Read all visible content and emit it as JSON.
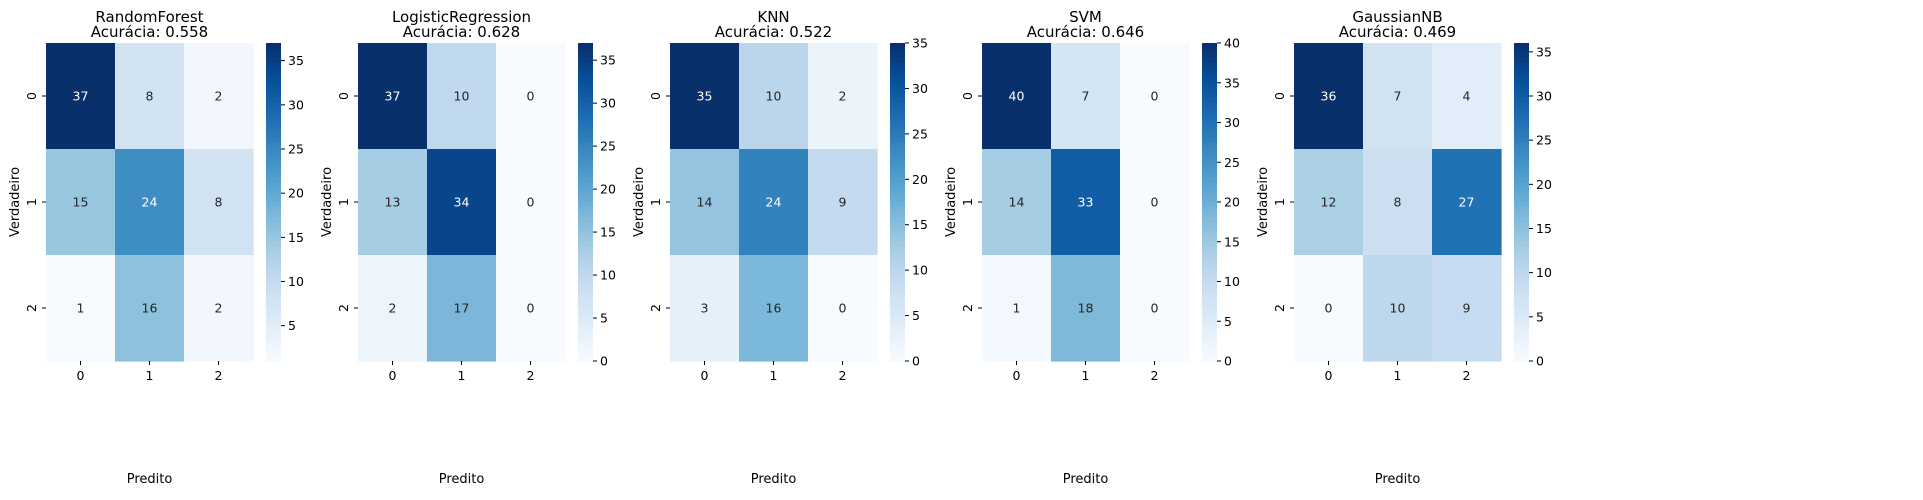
{
  "chart_data": [
    {
      "type": "heatmap",
      "title": "RandomForest",
      "subtitle": "Acurácia: 0.558",
      "xlabel": "Predito",
      "ylabel": "Verdadeiro",
      "x_categories": [
        "0",
        "1",
        "2"
      ],
      "y_categories": [
        "0",
        "1",
        "2"
      ],
      "values": [
        [
          37,
          8,
          2
        ],
        [
          15,
          24,
          8
        ],
        [
          1,
          16,
          2
        ]
      ],
      "colorbar": {
        "min": 1,
        "max": 37,
        "ticks": [
          5,
          10,
          15,
          20,
          25,
          30,
          35
        ]
      },
      "colormap": "Blues"
    },
    {
      "type": "heatmap",
      "title": "LogisticRegression",
      "subtitle": "Acurácia: 0.628",
      "xlabel": "Predito",
      "ylabel": "Verdadeiro",
      "x_categories": [
        "0",
        "1",
        "2"
      ],
      "y_categories": [
        "0",
        "1",
        "2"
      ],
      "values": [
        [
          37,
          10,
          0
        ],
        [
          13,
          34,
          0
        ],
        [
          2,
          17,
          0
        ]
      ],
      "colorbar": {
        "min": 0,
        "max": 37,
        "ticks": [
          0,
          5,
          10,
          15,
          20,
          25,
          30,
          35
        ]
      },
      "colormap": "Blues"
    },
    {
      "type": "heatmap",
      "title": "KNN",
      "subtitle": "Acurácia: 0.522",
      "xlabel": "Predito",
      "ylabel": "Verdadeiro",
      "x_categories": [
        "0",
        "1",
        "2"
      ],
      "y_categories": [
        "0",
        "1",
        "2"
      ],
      "values": [
        [
          35,
          10,
          2
        ],
        [
          14,
          24,
          9
        ],
        [
          3,
          16,
          0
        ]
      ],
      "colorbar": {
        "min": 0,
        "max": 35,
        "ticks": [
          0,
          5,
          10,
          15,
          20,
          25,
          30,
          35
        ]
      },
      "colormap": "Blues"
    },
    {
      "type": "heatmap",
      "title": "SVM",
      "subtitle": "Acurácia: 0.646",
      "xlabel": "Predito",
      "ylabel": "Verdadeiro",
      "x_categories": [
        "0",
        "1",
        "2"
      ],
      "y_categories": [
        "0",
        "1",
        "2"
      ],
      "values": [
        [
          40,
          7,
          0
        ],
        [
          14,
          33,
          0
        ],
        [
          1,
          18,
          0
        ]
      ],
      "colorbar": {
        "min": 0,
        "max": 40,
        "ticks": [
          0,
          5,
          10,
          15,
          20,
          25,
          30,
          35,
          40
        ]
      },
      "colormap": "Blues"
    },
    {
      "type": "heatmap",
      "title": "GaussianNB",
      "subtitle": "Acurácia: 0.469",
      "xlabel": "Predito",
      "ylabel": "Verdadeiro",
      "x_categories": [
        "0",
        "1",
        "2"
      ],
      "y_categories": [
        "0",
        "1",
        "2"
      ],
      "values": [
        [
          36,
          7,
          4
        ],
        [
          12,
          8,
          27
        ],
        [
          0,
          10,
          9
        ]
      ],
      "colorbar": {
        "min": 0,
        "max": 36,
        "ticks": [
          0,
          5,
          10,
          15,
          20,
          25,
          30,
          35
        ]
      },
      "colormap": "Blues"
    }
  ]
}
